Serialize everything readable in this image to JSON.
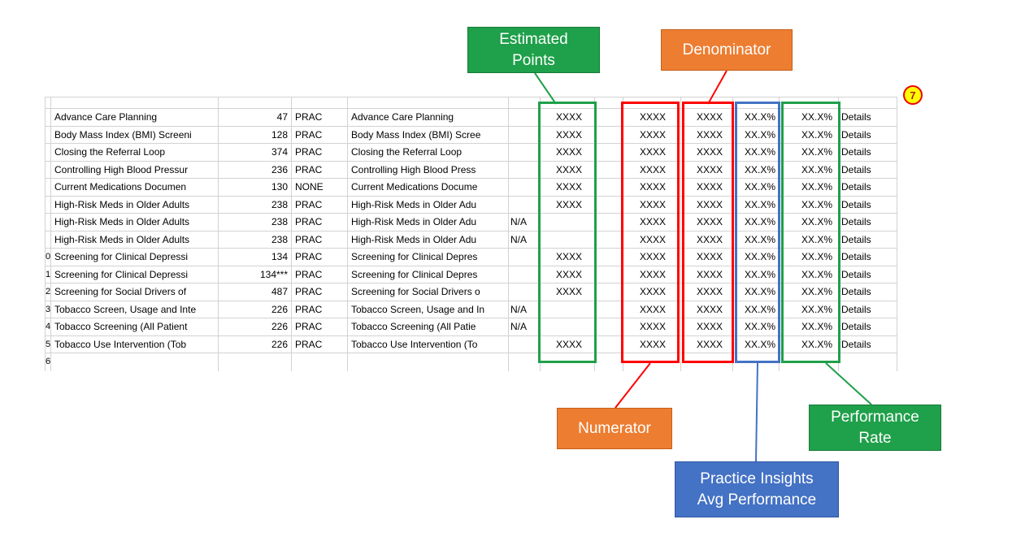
{
  "colors": {
    "green": "#1fa04a",
    "orange": "#ed7d31",
    "blue": "#4472c4",
    "red": "#ff0000",
    "badge_fill": "#ffff00",
    "gridline": "#d2d2d2"
  },
  "callouts": {
    "estimated_points": {
      "line1": "Estimated",
      "line2": "Points"
    },
    "denominator": {
      "label": "Denominator"
    },
    "numerator": {
      "label": "Numerator"
    },
    "practice_insights": {
      "line1": "Practice Insights",
      "line2": "Avg Performance"
    },
    "performance_rate": {
      "line1": "Performance",
      "line2": "Rate"
    },
    "badge": {
      "label": "7"
    }
  },
  "table": {
    "rows": [
      {
        "n": "",
        "measure": "Advance Care Planning",
        "points": "47",
        "type": "PRAC",
        "measure2": "Advance Care Planning",
        "flag": "",
        "est": "XXXX",
        "blank": "",
        "num": "XXXX",
        "den": "XXXX",
        "avg": "XX.X%",
        "rate": "XX.X%",
        "details": "Details"
      },
      {
        "n": "",
        "measure": "Body Mass Index (BMI) Screeni",
        "points": "128",
        "type": "PRAC",
        "measure2": "Body Mass Index (BMI) Scree",
        "flag": "",
        "est": "XXXX",
        "blank": "",
        "num": "XXXX",
        "den": "XXXX",
        "avg": "XX.X%",
        "rate": "XX.X%",
        "details": "Details"
      },
      {
        "n": "",
        "measure": "Closing the Referral Loop",
        "points": "374",
        "type": "PRAC",
        "measure2": "Closing the Referral Loop",
        "flag": "",
        "est": "XXXX",
        "blank": "",
        "num": "XXXX",
        "den": "XXXX",
        "avg": "XX.X%",
        "rate": "XX.X%",
        "details": "Details"
      },
      {
        "n": "",
        "measure": "Controlling High Blood Pressur",
        "points": "236",
        "type": "PRAC",
        "measure2": "Controlling High Blood Press",
        "flag": "",
        "est": "XXXX",
        "blank": "",
        "num": "XXXX",
        "den": "XXXX",
        "avg": "XX.X%",
        "rate": "XX.X%",
        "details": "Details"
      },
      {
        "n": "",
        "measure": "Current Medications Documen",
        "points": "130",
        "type": "NONE",
        "measure2": "Current Medications Docume",
        "flag": "",
        "est": "XXXX",
        "blank": "",
        "num": "XXXX",
        "den": "XXXX",
        "avg": "XX.X%",
        "rate": "XX.X%",
        "details": "Details"
      },
      {
        "n": "",
        "measure": "High-Risk Meds in Older Adults",
        "points": "238",
        "type": "PRAC",
        "measure2": "High-Risk Meds in Older Adu",
        "flag": "",
        "est": "XXXX",
        "blank": "",
        "num": "XXXX",
        "den": "XXXX",
        "avg": "XX.X%",
        "rate": "XX.X%",
        "details": "Details"
      },
      {
        "n": "",
        "measure": "High-Risk Meds in Older Adults",
        "points": "238",
        "type": "PRAC",
        "measure2": "High-Risk Meds in Older Adu",
        "flag": "N/A",
        "est": "",
        "blank": "",
        "num": "XXXX",
        "den": "XXXX",
        "avg": "XX.X%",
        "rate": "XX.X%",
        "details": "Details"
      },
      {
        "n": "",
        "measure": "High-Risk Meds in Older Adults",
        "points": "238",
        "type": "PRAC",
        "measure2": "High-Risk Meds in Older Adu",
        "flag": "N/A",
        "est": "",
        "blank": "",
        "num": "XXXX",
        "den": "XXXX",
        "avg": "XX.X%",
        "rate": "XX.X%",
        "details": "Details"
      },
      {
        "n": "0",
        "measure": "Screening for Clinical Depressi",
        "points": "134",
        "type": "PRAC",
        "measure2": "Screening for Clinical Depres",
        "flag": "",
        "est": "XXXX",
        "blank": "",
        "num": "XXXX",
        "den": "XXXX",
        "avg": "XX.X%",
        "rate": "XX.X%",
        "details": "Details"
      },
      {
        "n": "1",
        "measure": "Screening for Clinical Depressi",
        "points": "134***",
        "type": "PRAC",
        "measure2": "Screening for Clinical Depres",
        "flag": "",
        "est": "XXXX",
        "blank": "",
        "num": "XXXX",
        "den": "XXXX",
        "avg": "XX.X%",
        "rate": "XX.X%",
        "details": "Details"
      },
      {
        "n": "2",
        "measure": "Screening for Social Drivers of",
        "points": "487",
        "type": "PRAC",
        "measure2": "Screening for Social Drivers o",
        "flag": "",
        "est": "XXXX",
        "blank": "",
        "num": "XXXX",
        "den": "XXXX",
        "avg": "XX.X%",
        "rate": "XX.X%",
        "details": "Details"
      },
      {
        "n": "3",
        "measure": "Tobacco Screen, Usage and Inte",
        "points": "226",
        "type": "PRAC",
        "measure2": "Tobacco Screen, Usage and In",
        "flag": "N/A",
        "est": "",
        "blank": "",
        "num": "XXXX",
        "den": "XXXX",
        "avg": "XX.X%",
        "rate": "XX.X%",
        "details": "Details"
      },
      {
        "n": "4",
        "measure": "Tobacco Screening (All Patient",
        "points": "226",
        "type": "PRAC",
        "measure2": "Tobacco Screening (All Patie",
        "flag": "N/A",
        "est": "",
        "blank": "",
        "num": "XXXX",
        "den": "XXXX",
        "avg": "XX.X%",
        "rate": "XX.X%",
        "details": "Details"
      },
      {
        "n": "5",
        "measure": "Tobacco Use Intervention (Tob",
        "points": "226",
        "type": "PRAC",
        "measure2": "Tobacco Use Intervention (To",
        "flag": "",
        "est": "XXXX",
        "blank": "",
        "num": "XXXX",
        "den": "XXXX",
        "avg": "XX.X%",
        "rate": "XX.X%",
        "details": "Details"
      }
    ],
    "partial_row": {
      "n": "6"
    }
  }
}
